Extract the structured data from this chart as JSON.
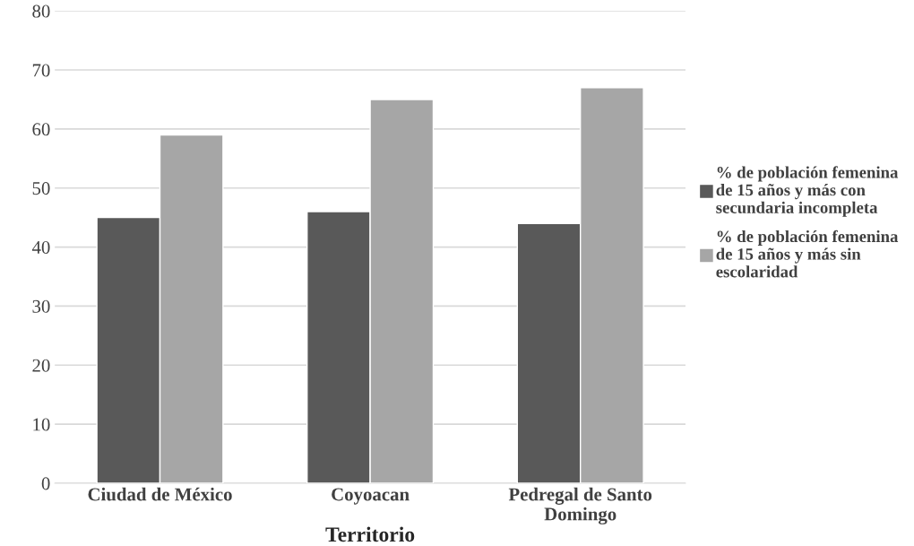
{
  "chart_data": {
    "type": "bar",
    "xlabel": "Territorio",
    "categories": [
      "Ciudad de México",
      "Coyoacan",
      "Pedregal de Santo Domingo"
    ],
    "series": [
      {
        "name": "% de población femenina de 15 años y más con secundaria incompleta",
        "color": "#595959",
        "values": [
          45,
          46,
          44
        ]
      },
      {
        "name": "% de población femenina de 15 años y más sin escolaridad",
        "color": "#a6a6a6",
        "values": [
          59,
          65,
          67
        ]
      }
    ],
    "ylim": [
      0,
      80
    ],
    "yticks": [
      0,
      10,
      20,
      30,
      40,
      50,
      60,
      70,
      80
    ],
    "grid": "y",
    "legend": "right"
  }
}
